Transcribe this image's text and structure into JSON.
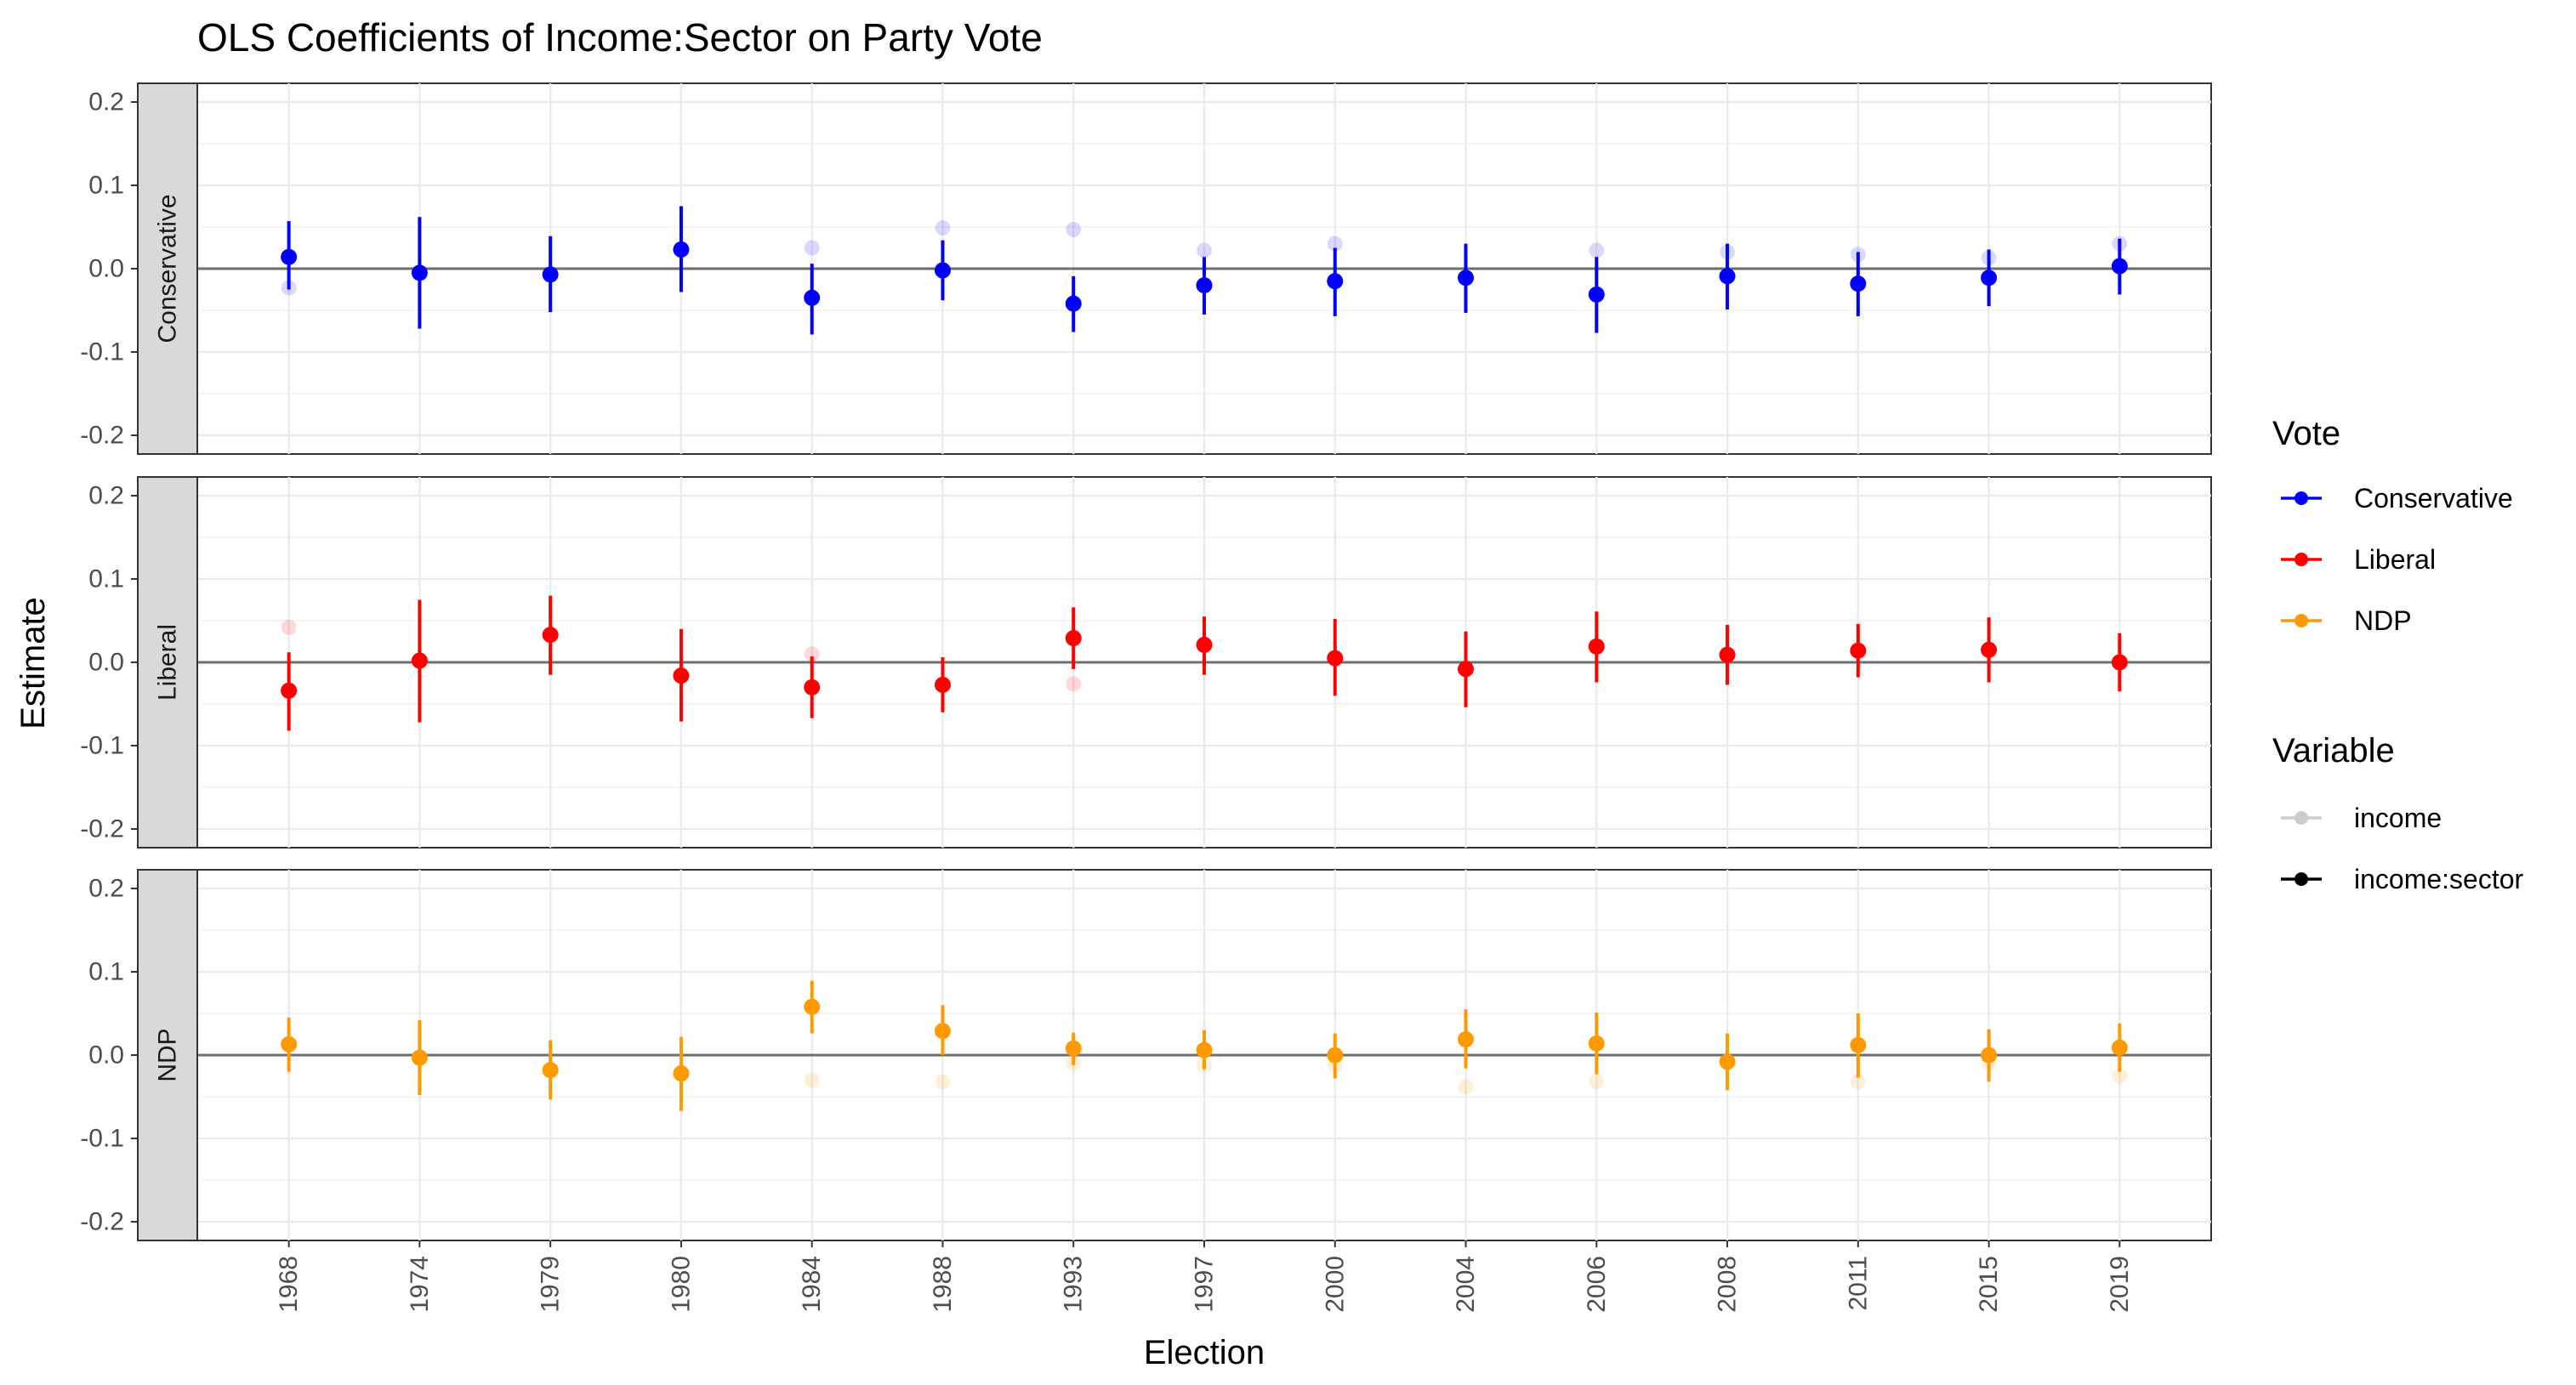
{
  "chart_data": {
    "type": "scatter",
    "title": "OLS Coefficients of Income:Sector on Party Vote",
    "xlabel": "Election",
    "ylabel": "Estimate",
    "ylim": [
      -0.2,
      0.2
    ],
    "y_ticks": [
      "-0.2",
      "-0.1",
      "0.0",
      "0.1",
      "0.2"
    ],
    "y_tick_values": [
      -0.2,
      -0.1,
      0.0,
      0.1,
      0.2
    ],
    "categories": [
      "1968",
      "1974",
      "1979",
      "1980",
      "1984",
      "1988",
      "1993",
      "1997",
      "2000",
      "2004",
      "2006",
      "2008",
      "2011",
      "2015",
      "2019"
    ],
    "grid": true,
    "legend_placement": "right",
    "legend": {
      "vote_title": "Vote",
      "vote_entries": [
        {
          "label": "Conservative",
          "color": "#0000ff"
        },
        {
          "label": "Liberal",
          "color": "#ff0000"
        },
        {
          "label": "NDP",
          "color": "#ff9900"
        }
      ],
      "variable_title": "Variable",
      "variable_entries": [
        {
          "label": "income",
          "color": "#cccccc"
        },
        {
          "label": "income:sector",
          "color": "#000000"
        }
      ]
    },
    "panels": [
      {
        "strip": "Conservative",
        "color": "#0000ff",
        "income": [
          -0.023,
          null,
          null,
          null,
          0.025,
          0.049,
          0.047,
          0.022,
          0.03,
          null,
          0.022,
          0.02,
          0.017,
          0.013,
          0.03
        ],
        "income_sector": {
          "estimate": [
            0.014,
            -0.005,
            -0.007,
            0.023,
            -0.035,
            -0.002,
            -0.042,
            -0.02,
            -0.015,
            -0.011,
            -0.031,
            -0.009,
            -0.018,
            -0.011,
            0.003
          ],
          "lower": [
            -0.025,
            -0.072,
            -0.052,
            -0.028,
            -0.079,
            -0.038,
            -0.076,
            -0.055,
            -0.057,
            -0.053,
            -0.077,
            -0.049,
            -0.057,
            -0.045,
            -0.031
          ],
          "upper": [
            0.057,
            0.062,
            0.039,
            0.075,
            0.006,
            0.034,
            -0.009,
            0.014,
            0.025,
            0.03,
            0.014,
            0.03,
            0.02,
            0.023,
            0.036
          ]
        }
      },
      {
        "strip": "Liberal",
        "color": "#ff0000",
        "income": [
          0.042,
          null,
          null,
          null,
          0.01,
          null,
          -0.026,
          null,
          null,
          null,
          null,
          null,
          null,
          null,
          null
        ],
        "income_sector": {
          "estimate": [
            -0.034,
            0.002,
            0.033,
            -0.016,
            -0.03,
            -0.027,
            0.029,
            0.021,
            0.005,
            -0.008,
            0.019,
            0.009,
            0.014,
            0.015,
            0.0
          ],
          "lower": [
            -0.082,
            -0.072,
            -0.015,
            -0.071,
            -0.067,
            -0.06,
            -0.008,
            -0.015,
            -0.04,
            -0.054,
            -0.024,
            -0.027,
            -0.018,
            -0.024,
            -0.035
          ],
          "upper": [
            0.012,
            0.075,
            0.08,
            0.04,
            0.007,
            0.006,
            0.066,
            0.055,
            0.052,
            0.037,
            0.061,
            0.045,
            0.046,
            0.054,
            0.035
          ]
        }
      },
      {
        "strip": "NDP",
        "color": "#ff9900",
        "income": [
          null,
          null,
          null,
          null,
          -0.03,
          -0.032,
          -0.01,
          -0.012,
          -0.012,
          -0.038,
          -0.032,
          null,
          -0.032,
          -0.01,
          -0.025
        ],
        "income_sector": {
          "estimate": [
            0.013,
            -0.003,
            -0.018,
            -0.022,
            0.058,
            0.029,
            0.008,
            0.006,
            0.0,
            0.019,
            0.014,
            -0.008,
            0.012,
            0.0,
            0.009
          ],
          "lower": [
            -0.02,
            -0.048,
            -0.053,
            -0.067,
            0.026,
            0.0,
            -0.012,
            -0.017,
            -0.028,
            -0.016,
            -0.023,
            -0.042,
            -0.027,
            -0.032,
            -0.02
          ],
          "upper": [
            0.045,
            0.042,
            0.018,
            0.022,
            0.089,
            0.06,
            0.027,
            0.03,
            0.026,
            0.055,
            0.051,
            0.026,
            0.05,
            0.031,
            0.038
          ]
        }
      }
    ]
  }
}
